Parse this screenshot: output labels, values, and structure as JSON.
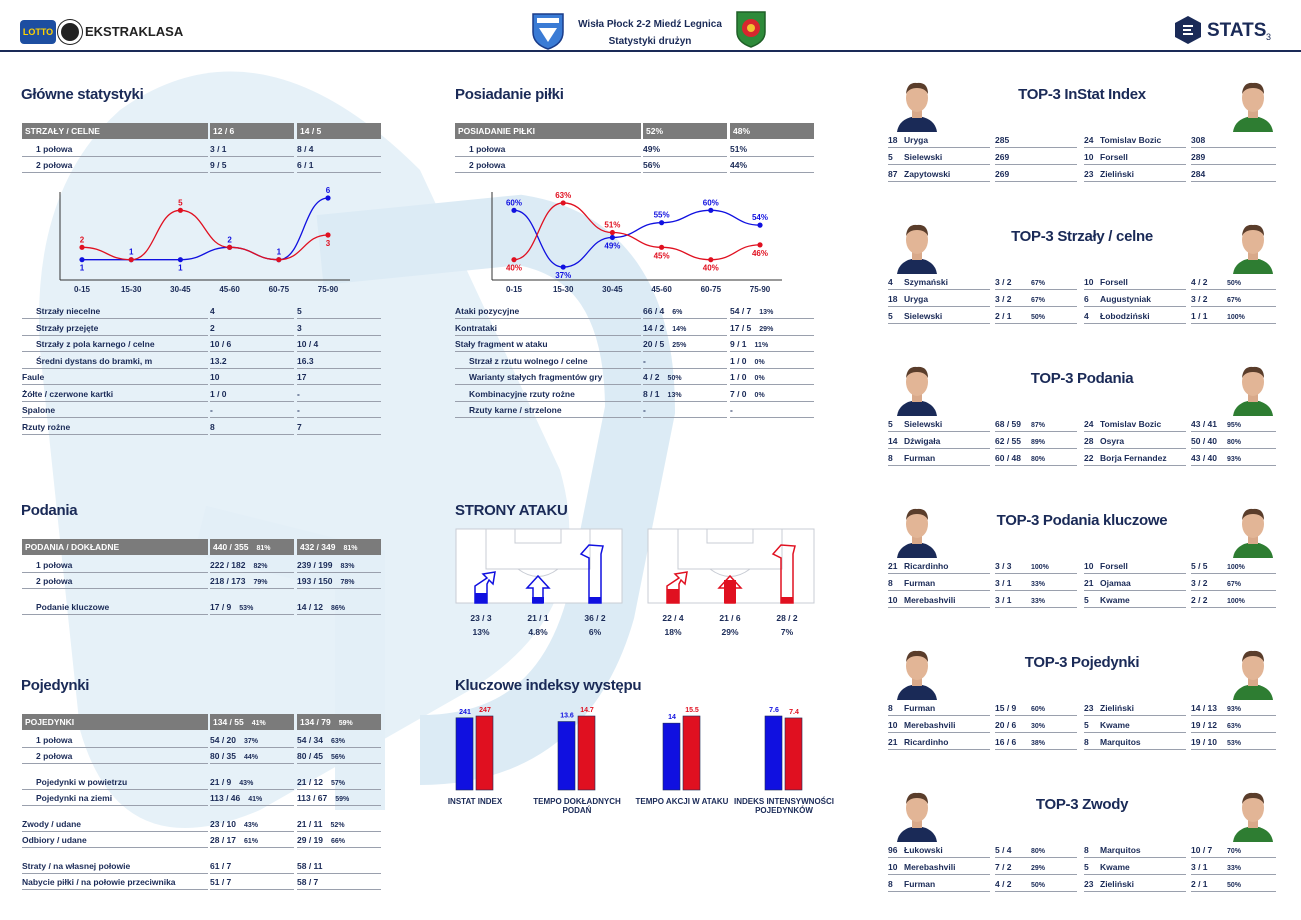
{
  "header": {
    "league_name": "EKSTRAKLASA",
    "lotto": "LOTTO",
    "match_title": "Wisła Płock 2-2 Miedź Legnica",
    "subtitle": "Statystyki drużyn",
    "brand": "STATS",
    "page_number": "3"
  },
  "colors": {
    "home": "#1010e0",
    "away": "#e01020",
    "header_gray": "#7b7b7b",
    "navy": "#1a2a57"
  },
  "main_stats": {
    "title": "Główne statystyki",
    "header": [
      "STRZAŁY / CELNE",
      "12 / 6",
      "14 / 5"
    ],
    "halves": [
      [
        "1 połowa",
        "3 / 1",
        "8 / 4"
      ],
      [
        "2 połowa",
        "9 / 5",
        "6 / 1"
      ]
    ],
    "rows": [
      [
        "Strzały niecelne",
        "4",
        "5"
      ],
      [
        "Strzały przejęte",
        "2",
        "3"
      ],
      [
        "Strzały z pola karnego / celne",
        "10 / 6",
        "10 / 4"
      ],
      [
        "Średni dystans do bramki, m",
        "13.2",
        "16.3"
      ],
      [
        "Faule",
        "10",
        "17"
      ],
      [
        "Żółte / czerwone kartki",
        "1 / 0",
        "-"
      ],
      [
        "Spalone",
        "-",
        "-"
      ],
      [
        "Rzuty rożne",
        "8",
        "7"
      ]
    ],
    "indented": [
      true,
      true,
      true,
      true,
      false,
      false,
      false,
      false
    ]
  },
  "shots_chart": {
    "categories": [
      "0-15",
      "15-30",
      "30-45",
      "45-60",
      "60-75",
      "75-90"
    ],
    "series": [
      {
        "values": [
          1,
          1,
          1,
          2,
          1,
          6
        ]
      },
      {
        "values": [
          2,
          1,
          5,
          2,
          1,
          3
        ]
      }
    ],
    "labels_home": [
      "1",
      "1",
      "1",
      "2",
      "1",
      "6"
    ],
    "labels_away": [
      "2",
      "",
      "5",
      "",
      "",
      "3"
    ],
    "ylim": [
      0,
      6
    ]
  },
  "possession": {
    "title": "Posiadanie piłki",
    "header": [
      "POSIADANIE PIŁKI",
      "52%",
      "48%"
    ],
    "halves": [
      [
        "1 połowa",
        "49%",
        "51%"
      ],
      [
        "2 połowa",
        "56%",
        "44%"
      ]
    ],
    "rows": [
      [
        "Ataki pozycyjne",
        "66 / 4",
        "6%",
        "54 / 7",
        "13%"
      ],
      [
        "Kontrataki",
        "14 / 2",
        "14%",
        "17 / 5",
        "29%"
      ],
      [
        "Stały fragment w ataku",
        "20 / 5",
        "25%",
        "9 / 1",
        "11%"
      ],
      [
        "Strzał z rzutu wolnego / celne",
        "-",
        "",
        "1 / 0",
        "0%"
      ],
      [
        "Warianty stałych fragmentów gry",
        "4 / 2",
        "50%",
        "1 / 0",
        "0%"
      ],
      [
        "Kombinacyjne rzuty rożne",
        "8 / 1",
        "13%",
        "7 / 0",
        "0%"
      ],
      [
        "Rzuty karne / strzelone",
        "-",
        "",
        "-",
        ""
      ]
    ],
    "indented": [
      false,
      false,
      false,
      true,
      true,
      true,
      true
    ]
  },
  "possession_chart": {
    "categories": [
      "0-15",
      "15-30",
      "30-45",
      "45-60",
      "60-75",
      "75-90"
    ],
    "series": [
      {
        "values": [
          60,
          37,
          49,
          55,
          60,
          54
        ]
      },
      {
        "values": [
          40,
          63,
          51,
          45,
          40,
          46
        ]
      }
    ],
    "labels_home": [
      "60%",
      "37%",
      "49%",
      "55%",
      "60%",
      "54%"
    ],
    "labels_away": [
      "40%",
      "63%",
      "51%",
      "45%",
      "40%",
      "46%"
    ],
    "ylim": [
      35,
      65
    ]
  },
  "passes": {
    "title": "Podania",
    "header": [
      "PODANIA / DOKŁADNE",
      "440 / 355",
      "81%",
      "432 / 349",
      "81%"
    ],
    "rows": [
      [
        "1 połowa",
        "222 / 182",
        "82%",
        "239 / 199",
        "83%"
      ],
      [
        "2 połowa",
        "218 / 173",
        "79%",
        "193 / 150",
        "78%"
      ],
      [
        "Podanie kluczowe",
        "17 / 9",
        "53%",
        "14 / 12",
        "86%"
      ]
    ]
  },
  "attack_sides": {
    "title": "STRONY ATAKU",
    "home": [
      {
        "count": "23 / 3",
        "pct": "13%",
        "level": 0.13
      },
      {
        "count": "21 / 1",
        "pct": "4.8%",
        "level": 0.048
      },
      {
        "count": "36 / 2",
        "pct": "6%",
        "level": 0.06
      }
    ],
    "away": [
      {
        "count": "22 / 4",
        "pct": "18%",
        "level": 0.18
      },
      {
        "count": "21 / 6",
        "pct": "29%",
        "level": 0.29
      },
      {
        "count": "28 / 2",
        "pct": "7%",
        "level": 0.07
      }
    ]
  },
  "duels": {
    "title": "Pojedynki",
    "header": [
      "POJEDYNKI",
      "134 / 55",
      "41%",
      "134 / 79",
      "59%"
    ],
    "rows": [
      [
        "1 połowa",
        "54 / 20",
        "37%",
        "54 / 34",
        "63%"
      ],
      [
        "2 połowa",
        "80 / 35",
        "44%",
        "80 / 45",
        "56%"
      ],
      [
        "Pojedynki w powietrzu",
        "21 / 9",
        "43%",
        "21 / 12",
        "57%"
      ],
      [
        "Pojedynki na ziemi",
        "113 / 46",
        "41%",
        "113 / 67",
        "59%"
      ],
      [
        "Zwody / udane",
        "23 / 10",
        "43%",
        "21 / 11",
        "52%"
      ],
      [
        "Odbiory / udane",
        "28 / 17",
        "61%",
        "29 / 19",
        "66%"
      ],
      [
        "Straty / na własnej połowie",
        "61 / 7",
        "",
        "58 / 11",
        ""
      ],
      [
        "Nabycie piłki / na połowie przeciwnika",
        "51 / 7",
        "",
        "58 / 7",
        ""
      ]
    ]
  },
  "key_indexes": {
    "title": "Kluczowe indeksy występu",
    "items": [
      {
        "label": "INSTAT INDEX",
        "home": 241,
        "away": 247,
        "home_lbl": "241",
        "away_lbl": "247"
      },
      {
        "label": "TEMPO DOKŁADNYCH PODAŃ",
        "home": 13.6,
        "away": 14.7,
        "home_lbl": "13.6",
        "away_lbl": "14.7"
      },
      {
        "label": "TEMPO AKCJI W ATAKU",
        "home": 14,
        "away": 15.5,
        "home_lbl": "14",
        "away_lbl": "15.5"
      },
      {
        "label": "INDEKS INTENSYWNOŚCI POJEDYNKÓW",
        "home": 7.6,
        "away": 7.4,
        "home_lbl": "7.6",
        "away_lbl": "7.4"
      }
    ]
  },
  "top3": [
    {
      "title": "TOP-3 InStat Index",
      "rows": [
        [
          "18",
          "Uryga",
          "285",
          "",
          "24",
          "Tomislav Bozic",
          "308",
          ""
        ],
        [
          "5",
          "Sielewski",
          "269",
          "",
          "10",
          "Forsell",
          "289",
          ""
        ],
        [
          "87",
          "Zapytowski",
          "269",
          "",
          "23",
          "Zieliński",
          "284",
          ""
        ]
      ]
    },
    {
      "title": "TOP-3 Strzały / celne",
      "rows": [
        [
          "4",
          "Szymański",
          "3 / 2",
          "67%",
          "10",
          "Forsell",
          "4 / 2",
          "50%"
        ],
        [
          "18",
          "Uryga",
          "3 / 2",
          "67%",
          "6",
          "Augustyniak",
          "3 / 2",
          "67%"
        ],
        [
          "5",
          "Sielewski",
          "2 / 1",
          "50%",
          "4",
          "Łobodziński",
          "1 / 1",
          "100%"
        ]
      ]
    },
    {
      "title": "TOP-3 Podania",
      "rows": [
        [
          "5",
          "Sielewski",
          "68 / 59",
          "87%",
          "24",
          "Tomislav Bozic",
          "43 / 41",
          "95%"
        ],
        [
          "14",
          "Dźwigała",
          "62 / 55",
          "89%",
          "28",
          "Osyra",
          "50 / 40",
          "80%"
        ],
        [
          "8",
          "Furman",
          "60 / 48",
          "80%",
          "22",
          "Borja Fernandez",
          "43 / 40",
          "93%"
        ]
      ]
    },
    {
      "title": "TOP-3 Podania kluczowe",
      "rows": [
        [
          "21",
          "Ricardinho",
          "3 / 3",
          "100%",
          "10",
          "Forsell",
          "5 / 5",
          "100%"
        ],
        [
          "8",
          "Furman",
          "3 / 1",
          "33%",
          "21",
          "Ojamaa",
          "3 / 2",
          "67%"
        ],
        [
          "10",
          "Merebashvili",
          "3 / 1",
          "33%",
          "5",
          "Kwame",
          "2 / 2",
          "100%"
        ]
      ]
    },
    {
      "title": "TOP-3 Pojedynki",
      "rows": [
        [
          "8",
          "Furman",
          "15 / 9",
          "60%",
          "23",
          "Zieliński",
          "14 / 13",
          "93%"
        ],
        [
          "10",
          "Merebashvili",
          "20 / 6",
          "30%",
          "5",
          "Kwame",
          "19 / 12",
          "63%"
        ],
        [
          "21",
          "Ricardinho",
          "16 / 6",
          "38%",
          "8",
          "Marquitos",
          "19 / 10",
          "53%"
        ]
      ]
    },
    {
      "title": "TOP-3 Zwody",
      "rows": [
        [
          "96",
          "Łukowski",
          "5 / 4",
          "80%",
          "8",
          "Marquitos",
          "10 / 7",
          "70%"
        ],
        [
          "10",
          "Merebashvili",
          "7 / 2",
          "29%",
          "5",
          "Kwame",
          "3 / 1",
          "33%"
        ],
        [
          "8",
          "Furman",
          "4 / 2",
          "50%",
          "23",
          "Zieliński",
          "2 / 1",
          "50%"
        ]
      ]
    }
  ]
}
